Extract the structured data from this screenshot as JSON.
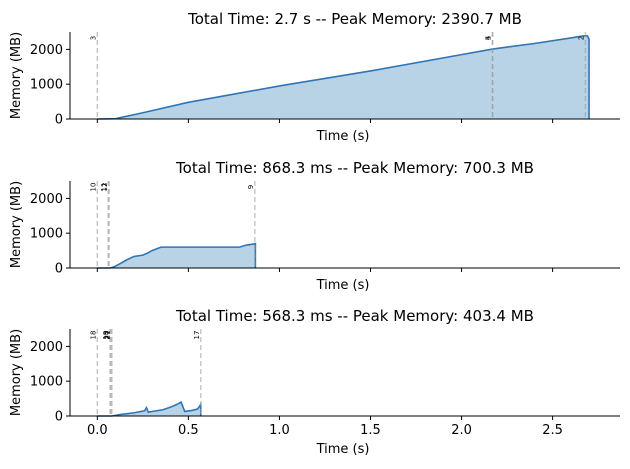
{
  "chart_data": [
    {
      "type": "area",
      "title": "Total Time: 2.7 s -- Peak Memory: 2390.7 MB",
      "xlabel": "Time (s)",
      "ylabel": "Memory (MB)",
      "xlim": [
        -0.15,
        2.87
      ],
      "ylim": [
        0,
        2500
      ],
      "yticks": [
        "0",
        "1000",
        "2000"
      ],
      "xticks": [],
      "color": "#2f75b5",
      "fill": "#b8d3e6",
      "markers": [
        {
          "label": "3",
          "x": 0.0
        },
        {
          "label": "4",
          "x": 2.17
        },
        {
          "label": "5",
          "x": 2.17
        },
        {
          "label": "2",
          "x": 2.68
        }
      ],
      "series": [
        {
          "x": [
            0.0,
            0.1,
            0.25,
            0.5,
            1.0,
            1.5,
            2.0,
            2.17,
            2.4,
            2.6,
            2.66,
            2.68,
            2.69,
            2.7,
            2.7
          ],
          "y": [
            0,
            10,
            180,
            480,
            950,
            1380,
            1850,
            2010,
            2170,
            2330,
            2380,
            2390,
            2390,
            2300,
            0
          ]
        }
      ]
    },
    {
      "type": "area",
      "title": "Total Time: 868.3 ms -- Peak Memory: 700.3 MB",
      "xlabel": "Time (s)",
      "ylabel": "Memory (MB)",
      "xlim": [
        -0.15,
        2.87
      ],
      "ylim": [
        0,
        2500
      ],
      "yticks": [
        "0",
        "1000",
        "2000"
      ],
      "xticks": [],
      "color": "#2f75b5",
      "fill": "#b8d3e6",
      "markers": [
        {
          "label": "10",
          "x": 0.0
        },
        {
          "label": "11",
          "x": 0.06
        },
        {
          "label": "12",
          "x": 0.065
        },
        {
          "label": "9",
          "x": 0.865
        }
      ],
      "series": [
        {
          "x": [
            0.0,
            0.07,
            0.09,
            0.12,
            0.16,
            0.2,
            0.25,
            0.28,
            0.3,
            0.35,
            0.6,
            0.7,
            0.78,
            0.82,
            0.85,
            0.868,
            0.868
          ],
          "y": [
            0,
            0,
            30,
            110,
            230,
            330,
            370,
            440,
            500,
            600,
            600,
            600,
            600,
            660,
            680,
            700,
            0
          ]
        }
      ]
    },
    {
      "type": "area",
      "title": "Total Time: 568.3 ms -- Peak Memory: 403.4 MB",
      "xlabel": "Time (s)",
      "ylabel": "Memory (MB)",
      "xlim": [
        -0.15,
        2.87
      ],
      "ylim": [
        0,
        2500
      ],
      "yticks": [
        "0",
        "1000",
        "2000"
      ],
      "xticks": [
        "0.0",
        "0.5",
        "1.0",
        "1.5",
        "2.0",
        "2.5"
      ],
      "color": "#2f75b5",
      "fill": "#b8d3e6",
      "markers": [
        {
          "label": "18",
          "x": 0.0
        },
        {
          "label": "19",
          "x": 0.07
        },
        {
          "label": "20",
          "x": 0.075
        },
        {
          "label": "21",
          "x": 0.08
        },
        {
          "label": "17",
          "x": 0.568
        }
      ],
      "series": [
        {
          "x": [
            0.0,
            0.08,
            0.12,
            0.2,
            0.26,
            0.27,
            0.28,
            0.3,
            0.36,
            0.4,
            0.44,
            0.46,
            0.48,
            0.52,
            0.55,
            0.56,
            0.568,
            0.568
          ],
          "y": [
            0,
            0,
            40,
            90,
            150,
            240,
            110,
            130,
            180,
            250,
            340,
            400,
            130,
            160,
            200,
            270,
            330,
            0
          ]
        }
      ]
    }
  ]
}
